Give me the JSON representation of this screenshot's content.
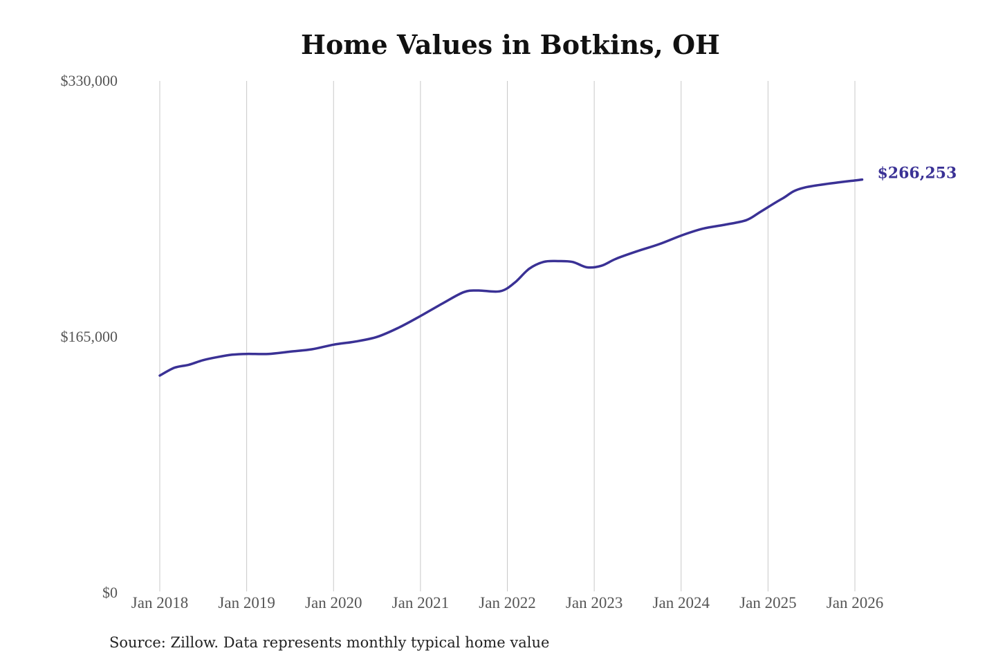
{
  "title": "Home Values in Botkins, OH",
  "source": "Source: Zillow. Data represents monthly typical home value",
  "colors": {
    "line": "#3a3195",
    "grid": "#c8c8c8",
    "text": "#555555"
  },
  "chart_data": {
    "type": "line",
    "title": "Home Values in Botkins, OH",
    "xlabel": "",
    "ylabel": "",
    "ylim": [
      0,
      330000
    ],
    "yticks": [
      0,
      165000,
      330000
    ],
    "ytick_labels": [
      "$0",
      "$165,000",
      "$330,000"
    ],
    "xticks": [
      2018,
      2019,
      2020,
      2021,
      2022,
      2023,
      2024,
      2025,
      2026
    ],
    "xtick_labels": [
      "Jan 2018",
      "Jan 2019",
      "Jan 2020",
      "Jan 2021",
      "Jan 2022",
      "Jan 2023",
      "Jan 2024",
      "Jan 2025",
      "Jan 2026"
    ],
    "grid": "vertical",
    "end_label": "$266,253",
    "series": [
      {
        "x": [
          "Jan 2018",
          "Mar 2018",
          "May 2018",
          "Jul 2018",
          "Sep 2018",
          "Nov 2018",
          "Jan 2019",
          "Apr 2019",
          "Jul 2019",
          "Oct 2019",
          "Jan 2020",
          "Apr 2020",
          "Jul 2020",
          "Oct 2020",
          "Jan 2021",
          "Apr 2021",
          "Jul 2021",
          "Sep 2021",
          "Dec 2021",
          "Feb 2022",
          "Apr 2022",
          "Jun 2022",
          "Aug 2022",
          "Oct 2022",
          "Dec 2022",
          "Feb 2023",
          "Apr 2023",
          "Jul 2023",
          "Oct 2023",
          "Jan 2024",
          "Apr 2024",
          "Jul 2024",
          "Oct 2024",
          "Dec 2024",
          "Mar 2025",
          "Jun 2025",
          "Sep 2025",
          "Dec 2025",
          "Feb 2026"
        ],
        "values": [
          139500,
          144500,
          146500,
          149500,
          151500,
          153000,
          153500,
          153500,
          155000,
          156500,
          159500,
          161500,
          164500,
          170500,
          178000,
          186000,
          193500,
          194500,
          194000,
          199500,
          208500,
          213000,
          213500,
          213000,
          209500,
          210500,
          215000,
          220000,
          224500,
          230000,
          234500,
          237000,
          240000,
          245500,
          254000,
          261000,
          266253,
          266253,
          266253
        ]
      }
    ]
  }
}
